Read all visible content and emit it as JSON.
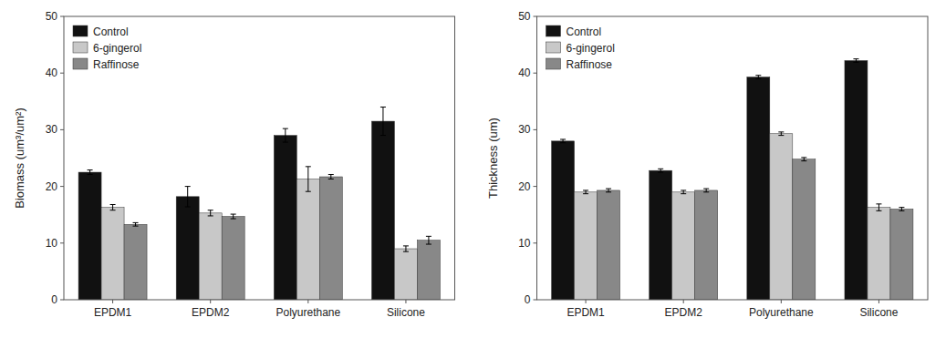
{
  "chart_data": [
    {
      "type": "bar",
      "categories": [
        "EPDM1",
        "EPDM2",
        "Polyurethane",
        "Silicone"
      ],
      "ylabel": "Biomass (um³/um²)",
      "ylim": [
        0,
        50
      ],
      "yticks": [
        0,
        10,
        20,
        30,
        40,
        50
      ],
      "grid": false,
      "legend": "upper-left",
      "series": [
        {
          "name": "Control",
          "color": "#111111",
          "values": [
            22.5,
            18.2,
            29.0,
            31.5
          ],
          "errors": [
            0.4,
            1.8,
            1.2,
            2.5
          ]
        },
        {
          "name": "6-gingerol",
          "color": "#c8c8c8",
          "values": [
            16.3,
            15.3,
            21.3,
            9.0
          ],
          "errors": [
            0.5,
            0.5,
            2.2,
            0.5
          ]
        },
        {
          "name": "Raffinose",
          "color": "#888888",
          "values": [
            13.3,
            14.7,
            21.7,
            10.5
          ],
          "errors": [
            0.3,
            0.4,
            0.4,
            0.7
          ]
        }
      ]
    },
    {
      "type": "bar",
      "categories": [
        "EPDM1",
        "EPDM2",
        "Polyurethane",
        "Silicone"
      ],
      "ylabel": "Thickness (um)",
      "ylim": [
        0,
        50
      ],
      "yticks": [
        0,
        10,
        20,
        30,
        40,
        50
      ],
      "grid": false,
      "legend": "upper-left",
      "series": [
        {
          "name": "Control",
          "color": "#111111",
          "values": [
            28.0,
            22.8,
            39.3,
            42.2
          ],
          "errors": [
            0.3,
            0.3,
            0.3,
            0.3
          ]
        },
        {
          "name": "6-gingerol",
          "color": "#c8c8c8",
          "values": [
            19.0,
            19.0,
            29.3,
            16.3
          ],
          "errors": [
            0.3,
            0.3,
            0.3,
            0.6
          ]
        },
        {
          "name": "Raffinose",
          "color": "#888888",
          "values": [
            19.3,
            19.3,
            24.8,
            16.0
          ],
          "errors": [
            0.3,
            0.3,
            0.3,
            0.3
          ]
        }
      ]
    }
  ]
}
